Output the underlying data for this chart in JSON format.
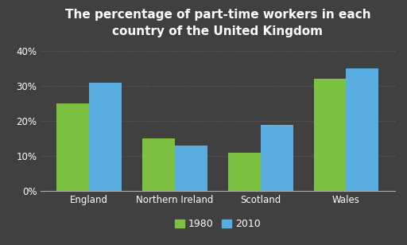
{
  "title": "The percentage of part-time workers in each\ncountry of the United Kingdom",
  "categories": [
    "England",
    "Northern Ireland",
    "Scotland",
    "Wales"
  ],
  "values_1980": [
    25,
    15,
    11,
    32
  ],
  "values_2010": [
    31,
    13,
    19,
    35
  ],
  "color_1980": "#7dc142",
  "color_2010": "#5aade0",
  "background_color": "#404040",
  "text_color": "#ffffff",
  "grid_color": "#606060",
  "ylim": [
    0,
    42
  ],
  "yticks": [
    0,
    10,
    20,
    30,
    40
  ],
  "ytick_labels": [
    "0%",
    "10%",
    "20%",
    "30%",
    "40%"
  ],
  "bar_width": 0.38,
  "legend_labels": [
    "1980",
    "2010"
  ],
  "title_fontsize": 11,
  "tick_fontsize": 8.5,
  "legend_fontsize": 9
}
